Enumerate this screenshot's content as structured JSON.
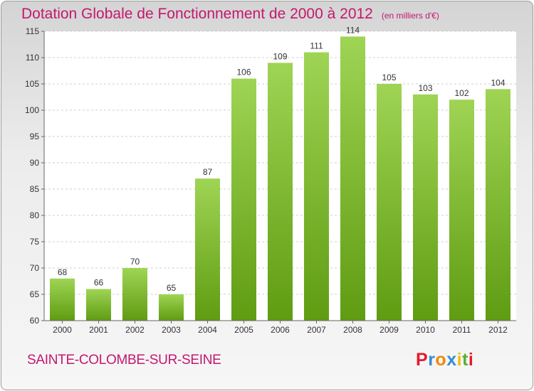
{
  "title": "Dotation Globale de Fonctionnement de 2000 à 2012",
  "unit": "(en milliers d'€)",
  "commune": "SAINTE-COLOMBE-SUR-SEINE",
  "logo": {
    "letters": [
      "P",
      "r",
      "o",
      "x",
      "i",
      "t",
      "i"
    ],
    "colors": [
      "#e6192b",
      "#2f8fd8",
      "#f08a00",
      "#2f8fd8",
      "#f0c000",
      "#58b030",
      "#e6192b"
    ]
  },
  "colors": {
    "bar_light": "#9fd454",
    "bar_dark": "#5f9c12",
    "title": "#c4176f"
  },
  "chart_data": {
    "type": "bar",
    "categories": [
      "2000",
      "2001",
      "2002",
      "2003",
      "2004",
      "2005",
      "2006",
      "2007",
      "2008",
      "2009",
      "2010",
      "2011",
      "2012"
    ],
    "values": [
      68,
      66,
      70,
      65,
      87,
      106,
      109,
      111,
      114,
      105,
      103,
      102,
      104
    ],
    "ylim": [
      60,
      115
    ],
    "yticks": [
      60,
      65,
      70,
      75,
      80,
      85,
      90,
      95,
      100,
      105,
      110,
      115
    ],
    "grid": true
  }
}
